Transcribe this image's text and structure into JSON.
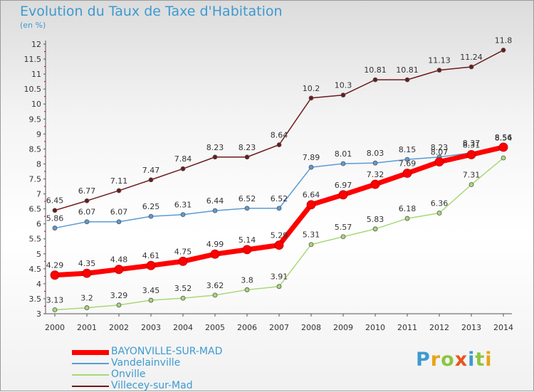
{
  "header": {
    "title": "Evolution du Taux de Taxe d'Habitation",
    "unit": "(en %)"
  },
  "logo": {
    "text": "Proxiti",
    "colors": [
      "#3d9ad0",
      "#e8a317",
      "#8cc63f",
      "#e8541c",
      "#3d9ad0",
      "#8cc63f",
      "#e8a317"
    ]
  },
  "chart_data": {
    "type": "line",
    "x": [
      "2000",
      "2001",
      "2002",
      "2003",
      "2004",
      "2005",
      "2006",
      "2007",
      "2008",
      "2009",
      "2010",
      "2011",
      "2012",
      "2013",
      "2014"
    ],
    "ylim": [
      3,
      12
    ],
    "yticks": [
      "3",
      "3.5",
      "4",
      "4.5",
      "5",
      "5.5",
      "6",
      "6.5",
      "7",
      "7.5",
      "8",
      "8.5",
      "9",
      "9.5",
      "10",
      "10.5",
      "11",
      "11.5",
      "12"
    ],
    "grid": false,
    "legend_position": "bottom-left",
    "series": [
      {
        "name": "Villecey-sur-Mad",
        "color": "#6b1a1a",
        "values": [
          6.45,
          6.77,
          7.11,
          7.47,
          7.84,
          8.23,
          8.23,
          8.64,
          10.2,
          10.3,
          10.81,
          10.81,
          11.13,
          11.24,
          11.8
        ],
        "labels": [
          "6.45",
          "6.77",
          "7.11",
          "7.47",
          "7.84",
          "8.23",
          "8.23",
          "8.64",
          "10.2",
          "10.3",
          "10.81",
          "10.81",
          "11.13",
          "11.24",
          "11.8"
        ]
      },
      {
        "name": "Vandelainville",
        "color": "#5b9bd5",
        "values": [
          5.86,
          6.07,
          6.07,
          6.25,
          6.31,
          6.44,
          6.52,
          6.52,
          7.89,
          8.01,
          8.03,
          8.15,
          8.23,
          8.37,
          8.54
        ],
        "labels": [
          "5.86",
          "6.07",
          "6.07",
          "6.25",
          "6.31",
          "6.44",
          "6.52",
          "6.52",
          "7.89",
          "8.01",
          "8.03",
          "8.15",
          "8.23",
          "8.37",
          "8.54"
        ]
      },
      {
        "name": "Onville",
        "color": "#a8d878",
        "values": [
          3.13,
          3.2,
          3.29,
          3.45,
          3.52,
          3.62,
          3.8,
          3.91,
          5.31,
          5.57,
          5.83,
          6.18,
          6.36,
          7.31,
          8.2
        ],
        "labels": [
          "3.13",
          "3.2",
          "3.29",
          "3.45",
          "3.52",
          "3.62",
          "3.8",
          "3.91",
          "5.31",
          "5.57",
          "5.83",
          "6.18",
          "6.36",
          "7.31",
          ""
        ]
      },
      {
        "name": "BAYONVILLE-SUR-MAD",
        "color": "#ff0000",
        "values": [
          4.29,
          4.35,
          4.48,
          4.61,
          4.75,
          4.99,
          5.14,
          5.29,
          6.64,
          6.97,
          7.32,
          7.69,
          8.07,
          8.31,
          8.56
        ],
        "labels": [
          "4.29",
          "4.35",
          "4.48",
          "4.61",
          "4.75",
          "4.99",
          "5.14",
          "5.29",
          "6.64",
          "6.97",
          "7.32",
          "7.69",
          "8.07",
          "8.31",
          "8.56"
        ]
      }
    ]
  }
}
